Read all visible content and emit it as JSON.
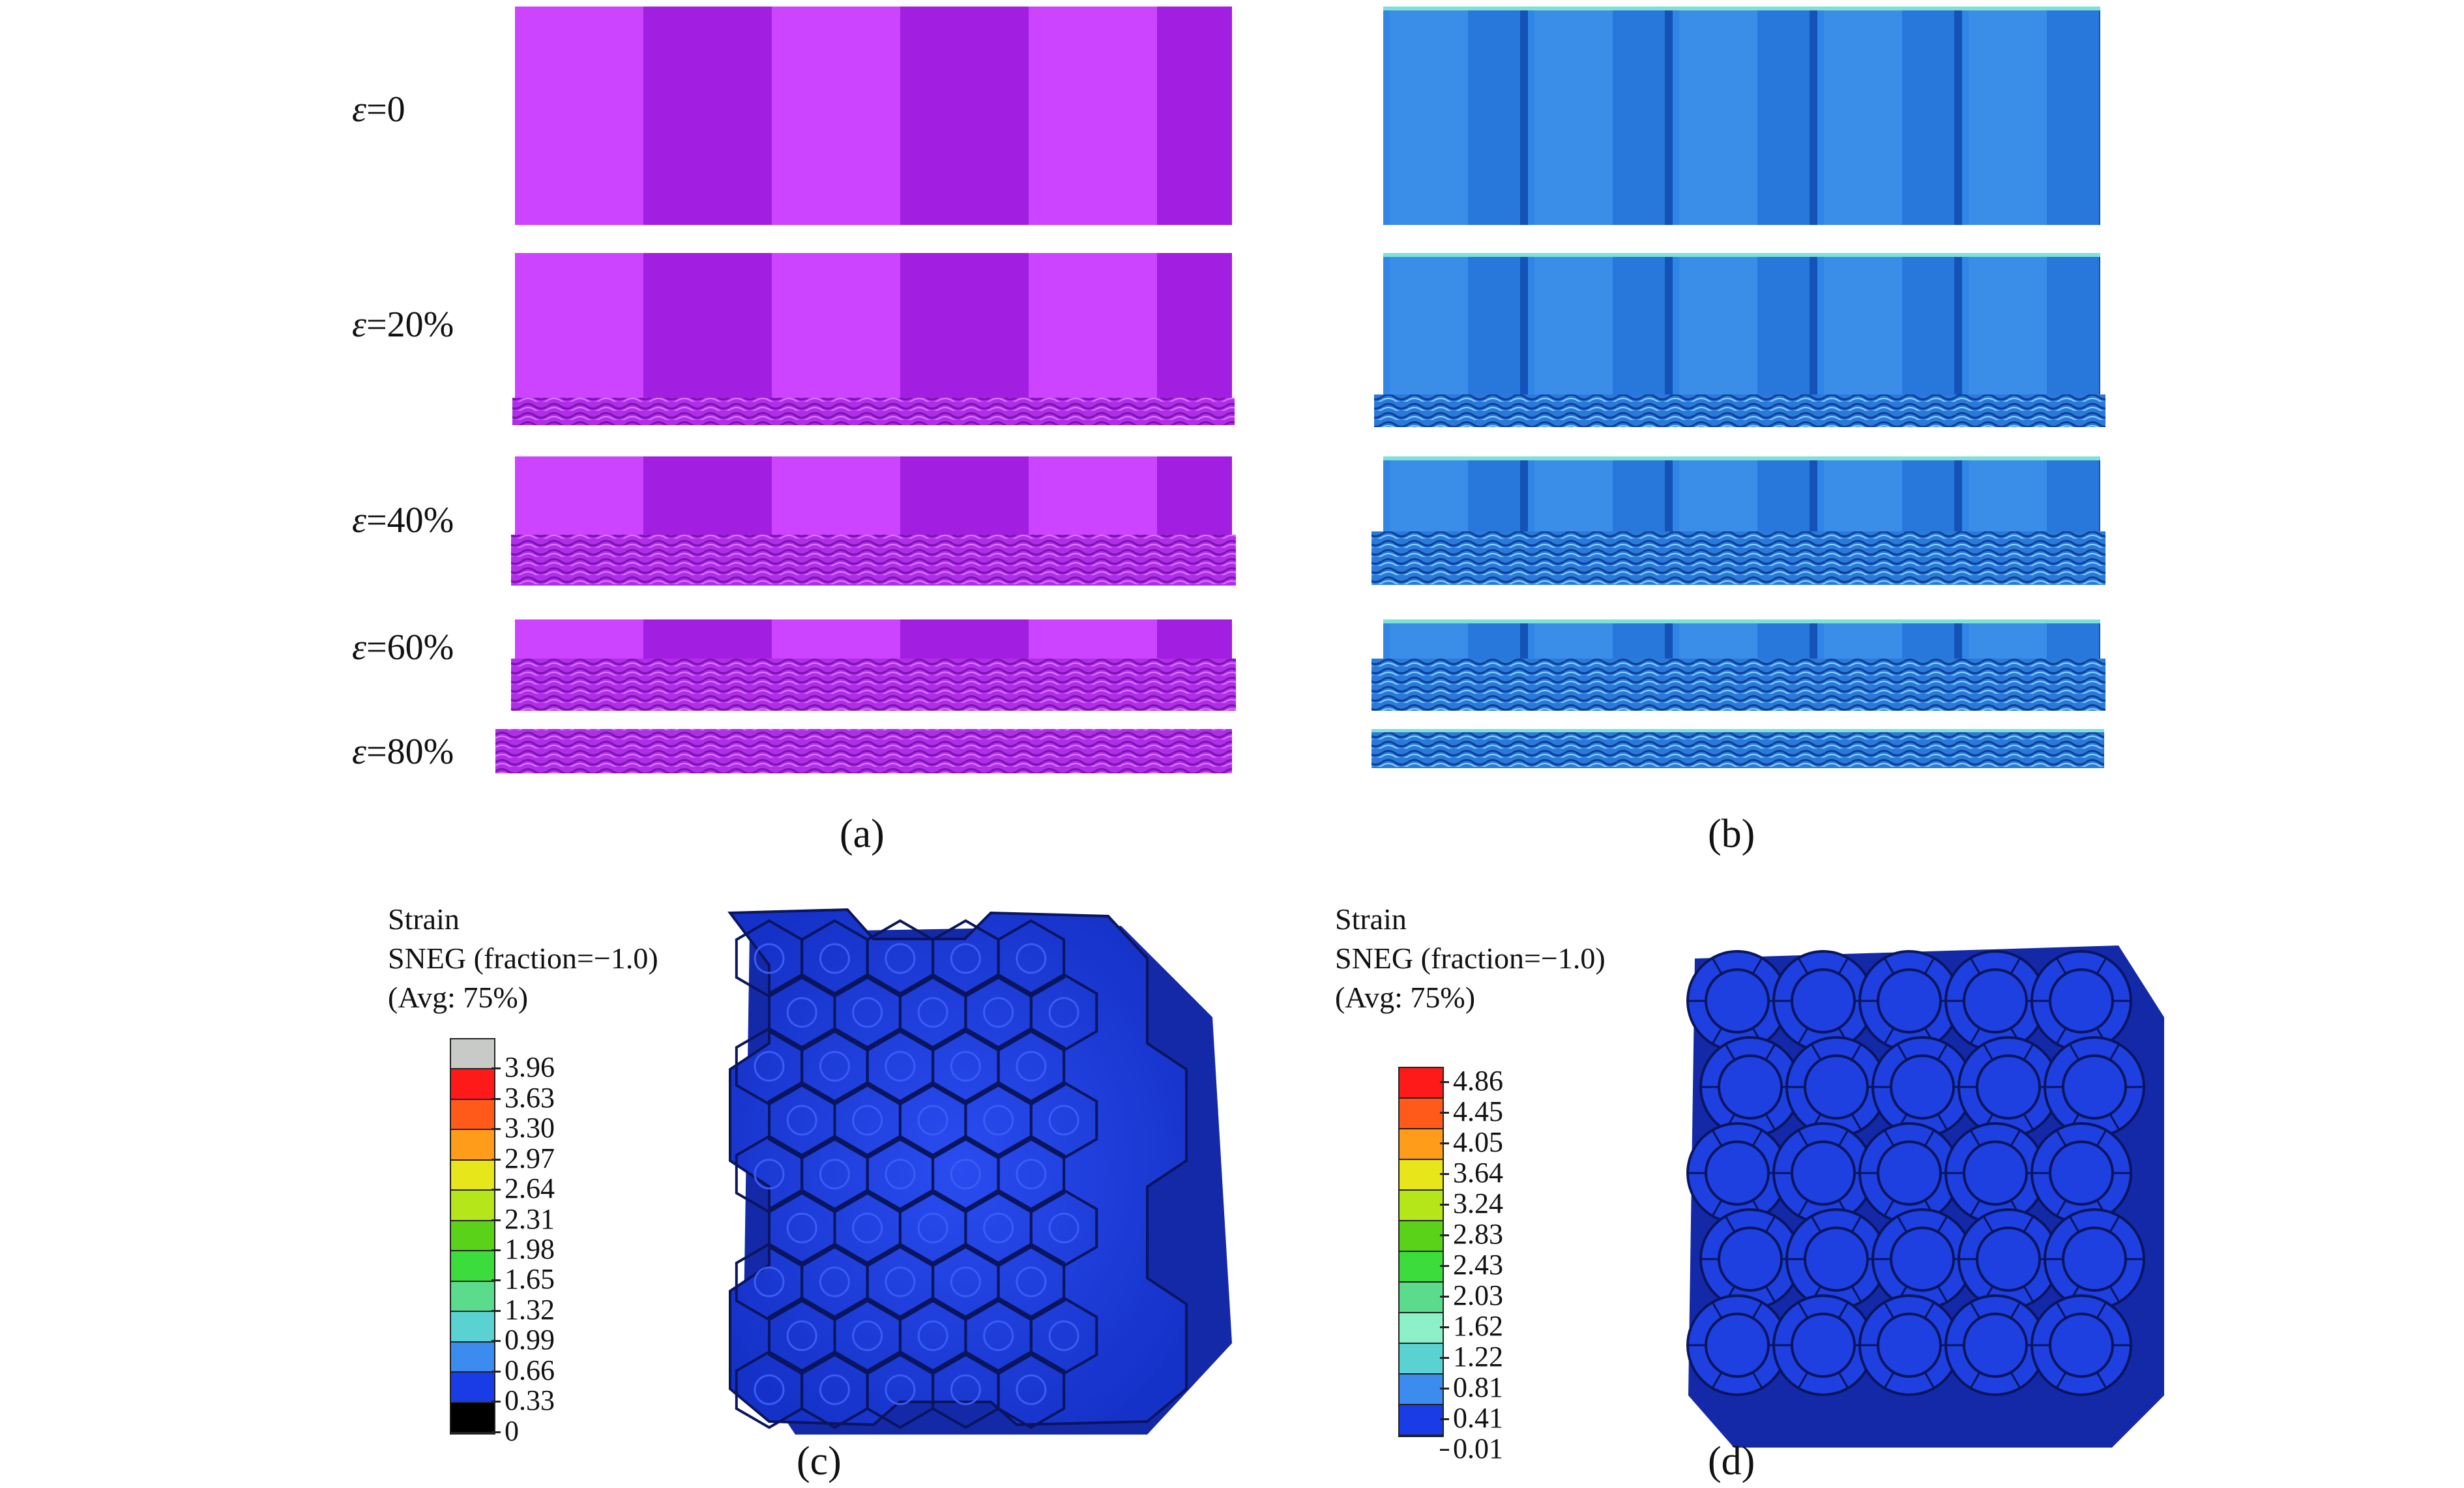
{
  "strain_labels": [
    {
      "symbol": "ε",
      "value": "=0"
    },
    {
      "symbol": "ε",
      "value": "=20%"
    },
    {
      "symbol": "ε",
      "value": "=40%"
    },
    {
      "symbol": "ε",
      "value": "=60%"
    },
    {
      "symbol": "ε",
      "value": "=80%"
    }
  ],
  "captions": {
    "a": "(a)",
    "b": "(b)",
    "c": "(c)",
    "d": "(d)"
  },
  "legend_c": {
    "title_line1": "Strain",
    "title_line2": "SNEG (fraction=−1.0)",
    "title_line3": "(Avg: 75%)",
    "values": [
      "3.96",
      "3.63",
      "3.30",
      "2.97",
      "2.64",
      "2.31",
      "1.98",
      "1.65",
      "1.32",
      "0.99",
      "0.66",
      "0.33",
      "0"
    ],
    "colors": [
      "#c8cac8",
      "#ff1a1a",
      "#ff5a1a",
      "#ff9c1a",
      "#e6e61a",
      "#b4e61a",
      "#5ad21a",
      "#3cdc3c",
      "#5adc8c",
      "#5ad2d2",
      "#3c8cf0",
      "#1a3ce6",
      "#000000"
    ]
  },
  "legend_d": {
    "title_line1": "Strain",
    "title_line2": "SNEG (fraction=−1.0)",
    "title_line3": "(Avg: 75%)",
    "values": [
      "4.86",
      "4.45",
      "4.05",
      "3.64",
      "3.24",
      "2.83",
      "2.43",
      "2.03",
      "1.62",
      "1.22",
      "0.81",
      "0.41",
      "0.01"
    ],
    "colors": [
      "#ff1a1a",
      "#ff5a1a",
      "#ff9c1a",
      "#e6e61a",
      "#b4e61a",
      "#5ad21a",
      "#3cdc3c",
      "#5adc8c",
      "#8cf0c8",
      "#5ad2d2",
      "#3c8cf0",
      "#1a3ce6"
    ]
  },
  "colors": {
    "purple_light": "#cc44ff",
    "purple_dark": "#a21ee0",
    "blue_light": "#3a8ee8",
    "blue_dark": "#1a64d2",
    "mesh_blue": "#1e3cdc"
  }
}
